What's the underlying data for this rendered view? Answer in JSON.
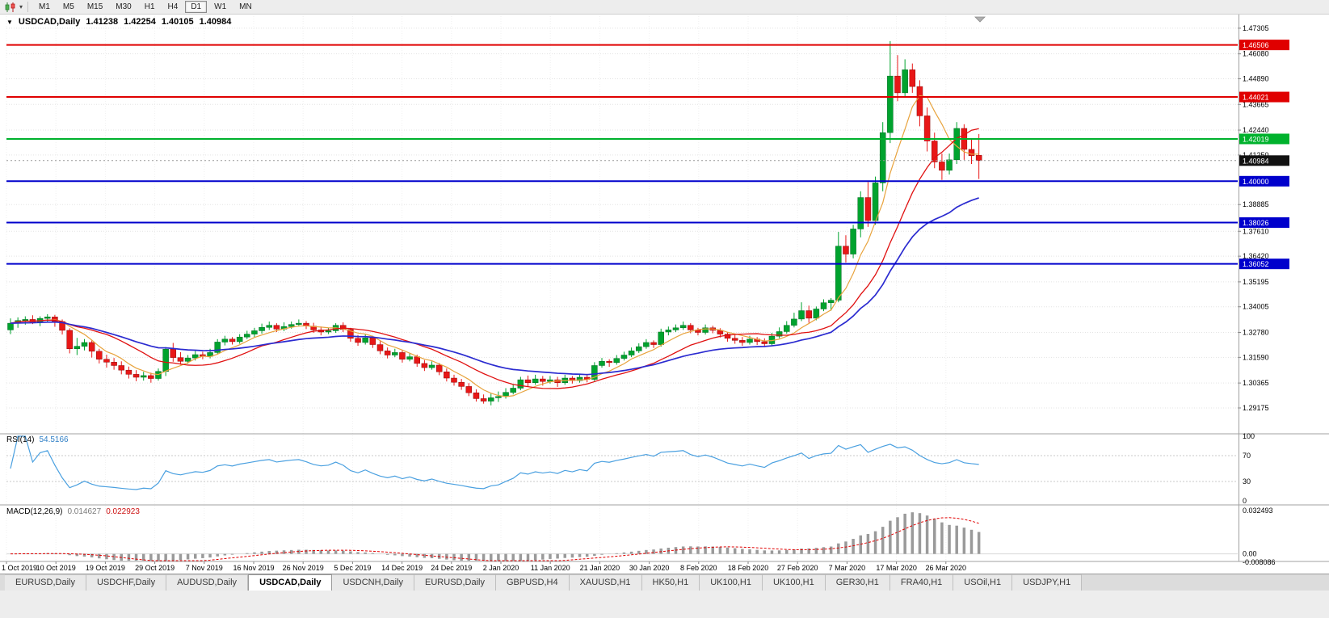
{
  "toolbar": {
    "timeframes": [
      "M1",
      "M5",
      "M15",
      "M30",
      "H1",
      "H4",
      "D1",
      "W1",
      "MN"
    ],
    "active_timeframe": "D1"
  },
  "chart": {
    "symbol_period": "USDCAD,Daily",
    "open": "1.41238",
    "high": "1.42254",
    "low": "1.40105",
    "close": "1.40984"
  },
  "rsi_panel": {
    "name": "RSI(14)",
    "value": "54.5166",
    "axis_labels": [
      "100",
      "70",
      "30",
      "0"
    ],
    "axis_values": [
      100,
      70,
      30,
      0
    ],
    "level_lines": [
      70,
      30
    ]
  },
  "macd_panel": {
    "name": "MACD(12,26,9)",
    "macd_value": "0.014627",
    "signal_value": "0.022923",
    "axis_labels": [
      "0.032493",
      "0.00",
      "-0.008086"
    ],
    "axis_values": [
      0.032493,
      0,
      -0.008086
    ]
  },
  "bottom_tabs": {
    "active_index": 3,
    "tabs": [
      "EURUSD,Daily",
      "USDCHF,Daily",
      "AUDUSD,Daily",
      "USDCAD,Daily",
      "USDCNH,Daily",
      "EURUSD,Daily",
      "GBPUSD,H4",
      "XAUUSD,H1",
      "HK50,H1",
      "UK100,H1",
      "UK100,H1",
      "GER30,H1",
      "FRA40,H1",
      "USOil,H1",
      "USDJPY,H1"
    ],
    "active_tab": "USDCAD,Daily"
  },
  "chart_data": {
    "type": "candlestick",
    "symbol": "USDCAD",
    "timeframe": "Daily",
    "title": "USDCAD,Daily 1.41238 1.42254 1.40105 1.40984",
    "last_ohlc": {
      "open": 1.41238,
      "high": 1.42254,
      "low": 1.40105,
      "close": 1.40984
    },
    "current_price": 1.40984,
    "price_range": [
      1.2794,
      1.4788
    ],
    "y_axis_ticks": [
      1.47305,
      1.4608,
      1.4489,
      1.43665,
      1.4244,
      1.4125,
      1.38885,
      1.3761,
      1.3642,
      1.35195,
      1.34005,
      1.3278,
      1.3159,
      1.30365,
      1.29175
    ],
    "x_axis_labels": [
      "1 Oct 2019",
      "10 Oct 2019",
      "19 Oct 2019",
      "29 Oct 2019",
      "7 Nov 2019",
      "16 Nov 2019",
      "26 Nov 2019",
      "5 Dec 2019",
      "14 Dec 2019",
      "24 Dec 2019",
      "2 Jan 2020",
      "11 Jan 2020",
      "21 Jan 2020",
      "30 Jan 2020",
      "8 Feb 2020",
      "18 Feb 2020",
      "27 Feb 2020",
      "7 Mar 2020",
      "17 Mar 2020",
      "26 Mar 2020"
    ],
    "horizontal_lines": [
      {
        "price": 1.46506,
        "color": "#e00000",
        "type": "resistance"
      },
      {
        "price": 1.44021,
        "color": "#e00000",
        "type": "resistance"
      },
      {
        "price": 1.42019,
        "color": "#00b22d",
        "type": "level"
      },
      {
        "price": 1.4,
        "color": "#0000cc",
        "type": "support"
      },
      {
        "price": 1.38026,
        "color": "#0000cc",
        "type": "support"
      },
      {
        "price": 1.36052,
        "color": "#0000cc",
        "type": "support"
      }
    ],
    "moving_averages": [
      {
        "period": 6,
        "method": "sma",
        "color": "#e8a33d",
        "width": 1.2,
        "name": "fast-ma"
      },
      {
        "period": 14,
        "method": "sma",
        "color": "#e01010",
        "width": 1.3,
        "name": "medium-ma"
      },
      {
        "period": 30,
        "method": "ema",
        "color": "#2b2bd0",
        "width": 1.7,
        "name": "slow-ma"
      }
    ],
    "indicators": {
      "rsi": {
        "period": 14,
        "last_value": 54.5166
      },
      "macd": {
        "fast": 12,
        "slow": 26,
        "signal": 9,
        "last_macd": 0.014627,
        "last_signal": 0.022923
      }
    },
    "colors": {
      "up": "#00a32e",
      "down": "#e81717",
      "background": "#ffffff",
      "grid": "#e3e3e3",
      "rsi_line": "#4aa0e0",
      "macd_hist": "#9a9a9a",
      "macd_signal": "#e00000",
      "current_price_badge": "#111111"
    },
    "candles": [
      [
        1.329,
        1.3345,
        1.327,
        1.3322
      ],
      [
        1.3322,
        1.335,
        1.33,
        1.3335
      ],
      [
        1.3335,
        1.3355,
        1.3315,
        1.334
      ],
      [
        1.334,
        1.336,
        1.3318,
        1.3328
      ],
      [
        1.3328,
        1.3355,
        1.3308,
        1.3345
      ],
      [
        1.3345,
        1.3365,
        1.3325,
        1.3352
      ],
      [
        1.3352,
        1.3362,
        1.3305,
        1.333
      ],
      [
        1.333,
        1.334,
        1.3268,
        1.3288
      ],
      [
        1.3288,
        1.3298,
        1.3178,
        1.32
      ],
      [
        1.32,
        1.3252,
        1.317,
        1.3212
      ],
      [
        1.3212,
        1.3246,
        1.3192,
        1.323
      ],
      [
        1.323,
        1.324,
        1.3158,
        1.3188
      ],
      [
        1.3188,
        1.32,
        1.313,
        1.315
      ],
      [
        1.315,
        1.3172,
        1.311,
        1.3136
      ],
      [
        1.3136,
        1.3156,
        1.31,
        1.312
      ],
      [
        1.312,
        1.314,
        1.3078,
        1.3098
      ],
      [
        1.3098,
        1.3115,
        1.3058,
        1.3078
      ],
      [
        1.3078,
        1.3098,
        1.3045,
        1.3064
      ],
      [
        1.3064,
        1.309,
        1.3048,
        1.3072
      ],
      [
        1.3072,
        1.3086,
        1.3038,
        1.3058
      ],
      [
        1.3058,
        1.3106,
        1.3048,
        1.3092
      ],
      [
        1.3092,
        1.3208,
        1.307,
        1.3198
      ],
      [
        1.3198,
        1.3228,
        1.3138,
        1.3158
      ],
      [
        1.3158,
        1.3184,
        1.3124,
        1.314
      ],
      [
        1.314,
        1.317,
        1.3128,
        1.3156
      ],
      [
        1.3156,
        1.319,
        1.3144,
        1.3172
      ],
      [
        1.3172,
        1.3186,
        1.315,
        1.3164
      ],
      [
        1.3164,
        1.32,
        1.3154,
        1.3182
      ],
      [
        1.3182,
        1.3246,
        1.3172,
        1.3232
      ],
      [
        1.3232,
        1.3262,
        1.3216,
        1.3246
      ],
      [
        1.3246,
        1.3256,
        1.322,
        1.3234
      ],
      [
        1.3234,
        1.327,
        1.3224,
        1.3256
      ],
      [
        1.3256,
        1.3286,
        1.3246,
        1.327
      ],
      [
        1.327,
        1.33,
        1.3256,
        1.3286
      ],
      [
        1.3286,
        1.332,
        1.3272,
        1.3302
      ],
      [
        1.3302,
        1.333,
        1.329,
        1.3312
      ],
      [
        1.3312,
        1.3322,
        1.328,
        1.3294
      ],
      [
        1.3294,
        1.3326,
        1.3284,
        1.3306
      ],
      [
        1.3306,
        1.333,
        1.3296,
        1.3316
      ],
      [
        1.3316,
        1.334,
        1.3306,
        1.3322
      ],
      [
        1.3322,
        1.3332,
        1.3294,
        1.3308
      ],
      [
        1.3308,
        1.3324,
        1.3276,
        1.329
      ],
      [
        1.329,
        1.3306,
        1.3264,
        1.328
      ],
      [
        1.328,
        1.33,
        1.327,
        1.3286
      ],
      [
        1.3286,
        1.3322,
        1.3276,
        1.3312
      ],
      [
        1.3312,
        1.3326,
        1.328,
        1.3292
      ],
      [
        1.3292,
        1.33,
        1.3234,
        1.325
      ],
      [
        1.325,
        1.3266,
        1.3214,
        1.323
      ],
      [
        1.323,
        1.3272,
        1.322,
        1.3252
      ],
      [
        1.3252,
        1.3262,
        1.3204,
        1.322
      ],
      [
        1.322,
        1.3236,
        1.3174,
        1.319
      ],
      [
        1.319,
        1.3206,
        1.3154,
        1.317
      ],
      [
        1.317,
        1.32,
        1.316,
        1.3182
      ],
      [
        1.3182,
        1.3192,
        1.3134,
        1.315
      ],
      [
        1.315,
        1.318,
        1.314,
        1.3162
      ],
      [
        1.3162,
        1.3172,
        1.3114,
        1.313
      ],
      [
        1.313,
        1.3146,
        1.3094,
        1.311
      ],
      [
        1.311,
        1.314,
        1.31,
        1.3122
      ],
      [
        1.3122,
        1.3132,
        1.3074,
        1.309
      ],
      [
        1.309,
        1.3106,
        1.3044,
        1.306
      ],
      [
        1.306,
        1.3076,
        1.3024,
        1.304
      ],
      [
        1.304,
        1.3056,
        1.3004,
        1.302
      ],
      [
        1.302,
        1.3036,
        1.2974,
        1.299
      ],
      [
        1.299,
        1.3006,
        1.2948,
        1.2962
      ],
      [
        1.2962,
        1.2982,
        1.2938,
        1.295
      ],
      [
        1.295,
        1.2986,
        1.293,
        1.2966
      ],
      [
        1.2966,
        1.2996,
        1.2946,
        1.2972
      ],
      [
        1.2972,
        1.3012,
        1.2962,
        1.2992
      ],
      [
        1.2992,
        1.3032,
        1.2982,
        1.3012
      ],
      [
        1.3012,
        1.3066,
        1.3002,
        1.3052
      ],
      [
        1.3052,
        1.3072,
        1.302,
        1.3038
      ],
      [
        1.3038,
        1.3076,
        1.3028,
        1.3056
      ],
      [
        1.3056,
        1.307,
        1.3024,
        1.3044
      ],
      [
        1.3044,
        1.307,
        1.3034,
        1.3052
      ],
      [
        1.3052,
        1.3066,
        1.3018,
        1.3038
      ],
      [
        1.3038,
        1.3076,
        1.3028,
        1.306
      ],
      [
        1.306,
        1.307,
        1.3034,
        1.3048
      ],
      [
        1.3048,
        1.308,
        1.3038,
        1.3064
      ],
      [
        1.3064,
        1.308,
        1.304,
        1.3054
      ],
      [
        1.3054,
        1.3136,
        1.3044,
        1.312
      ],
      [
        1.312,
        1.3156,
        1.311,
        1.314
      ],
      [
        1.314,
        1.315,
        1.3114,
        1.3134
      ],
      [
        1.3134,
        1.317,
        1.3124,
        1.3154
      ],
      [
        1.3154,
        1.3186,
        1.3144,
        1.317
      ],
      [
        1.317,
        1.3206,
        1.316,
        1.319
      ],
      [
        1.319,
        1.3226,
        1.318,
        1.321
      ],
      [
        1.321,
        1.3246,
        1.32,
        1.323
      ],
      [
        1.323,
        1.324,
        1.3204,
        1.322
      ],
      [
        1.322,
        1.3296,
        1.321,
        1.328
      ],
      [
        1.328,
        1.3306,
        1.3264,
        1.329
      ],
      [
        1.329,
        1.3316,
        1.328,
        1.33
      ],
      [
        1.33,
        1.333,
        1.329,
        1.3312
      ],
      [
        1.3312,
        1.3322,
        1.3274,
        1.329
      ],
      [
        1.329,
        1.33,
        1.3264,
        1.3278
      ],
      [
        1.3278,
        1.3316,
        1.3268,
        1.33
      ],
      [
        1.33,
        1.331,
        1.3274,
        1.3288
      ],
      [
        1.3288,
        1.3298,
        1.3254,
        1.327
      ],
      [
        1.327,
        1.328,
        1.3234,
        1.325
      ],
      [
        1.325,
        1.3266,
        1.3224,
        1.324
      ],
      [
        1.324,
        1.3256,
        1.3214,
        1.323
      ],
      [
        1.323,
        1.3262,
        1.322,
        1.3246
      ],
      [
        1.3246,
        1.3256,
        1.3218,
        1.3234
      ],
      [
        1.3234,
        1.325,
        1.3208,
        1.3224
      ],
      [
        1.3224,
        1.3276,
        1.3214,
        1.326
      ],
      [
        1.326,
        1.3302,
        1.325,
        1.3282
      ],
      [
        1.3282,
        1.3332,
        1.3272,
        1.3312
      ],
      [
        1.3312,
        1.3372,
        1.3302,
        1.3342
      ],
      [
        1.3342,
        1.3422,
        1.3332,
        1.3382
      ],
      [
        1.3382,
        1.3406,
        1.3324,
        1.3346
      ],
      [
        1.3346,
        1.3402,
        1.3336,
        1.339
      ],
      [
        1.339,
        1.3436,
        1.338,
        1.342
      ],
      [
        1.342,
        1.3442,
        1.3382,
        1.3432
      ],
      [
        1.3432,
        1.3758,
        1.3422,
        1.369
      ],
      [
        1.369,
        1.3742,
        1.3612,
        1.3652
      ],
      [
        1.3652,
        1.3792,
        1.3632,
        1.3772
      ],
      [
        1.3772,
        1.3952,
        1.3732,
        1.3922
      ],
      [
        1.3922,
        1.3996,
        1.3782,
        1.3812
      ],
      [
        1.3812,
        1.4022,
        1.3792,
        1.3992
      ],
      [
        1.3992,
        1.4282,
        1.3952,
        1.4232
      ],
      [
        1.4232,
        1.4669,
        1.4182,
        1.4502
      ],
      [
        1.4502,
        1.4602,
        1.4382,
        1.4422
      ],
      [
        1.4422,
        1.4582,
        1.4402,
        1.4532
      ],
      [
        1.4532,
        1.4562,
        1.4422,
        1.4452
      ],
      [
        1.4452,
        1.4482,
        1.4262,
        1.4312
      ],
      [
        1.4312,
        1.4352,
        1.4142,
        1.4192
      ],
      [
        1.4192,
        1.4232,
        1.4062,
        1.4092
      ],
      [
        1.4092,
        1.4132,
        1.4006,
        1.4052
      ],
      [
        1.4052,
        1.4132,
        1.4032,
        1.4102
      ],
      [
        1.4102,
        1.4282,
        1.4082,
        1.4252
      ],
      [
        1.4252,
        1.4272,
        1.4102,
        1.4152
      ],
      [
        1.4152,
        1.4202,
        1.4082,
        1.4122
      ],
      [
        1.41238,
        1.42254,
        1.40105,
        1.40984
      ]
    ]
  }
}
